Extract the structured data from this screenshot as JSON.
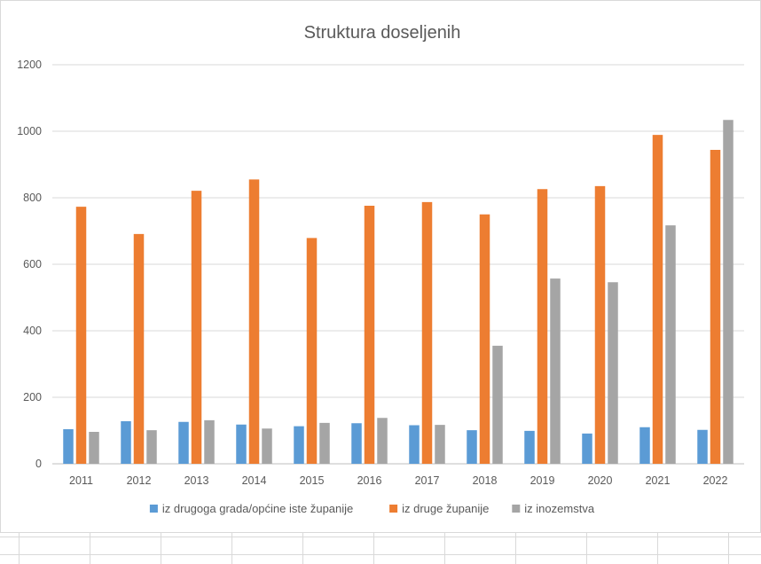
{
  "chart_data": {
    "type": "bar",
    "title": "Struktura doseljenih",
    "xlabel": "",
    "ylabel": "",
    "categories": [
      "2011",
      "2012",
      "2013",
      "2014",
      "2015",
      "2016",
      "2017",
      "2018",
      "2019",
      "2020",
      "2021",
      "2022"
    ],
    "ylim": [
      0,
      1200
    ],
    "yticks": [
      0,
      200,
      400,
      600,
      800,
      1000,
      1200
    ],
    "grid": true,
    "legend_position": "bottom",
    "series": [
      {
        "name": "iz drugoga grada/općine iste županije",
        "color": "#5b9bd5",
        "values": [
          104,
          128,
          126,
          118,
          113,
          122,
          116,
          101,
          99,
          91,
          110,
          102
        ]
      },
      {
        "name": "iz druge županije",
        "color": "#ed7d31",
        "values": [
          773,
          691,
          821,
          855,
          679,
          776,
          787,
          750,
          826,
          835,
          989,
          944
        ]
      },
      {
        "name": "iz inozemstva",
        "color": "#a5a5a5",
        "values": [
          96,
          101,
          131,
          106,
          123,
          138,
          117,
          355,
          557,
          546,
          717,
          1034
        ]
      }
    ]
  }
}
